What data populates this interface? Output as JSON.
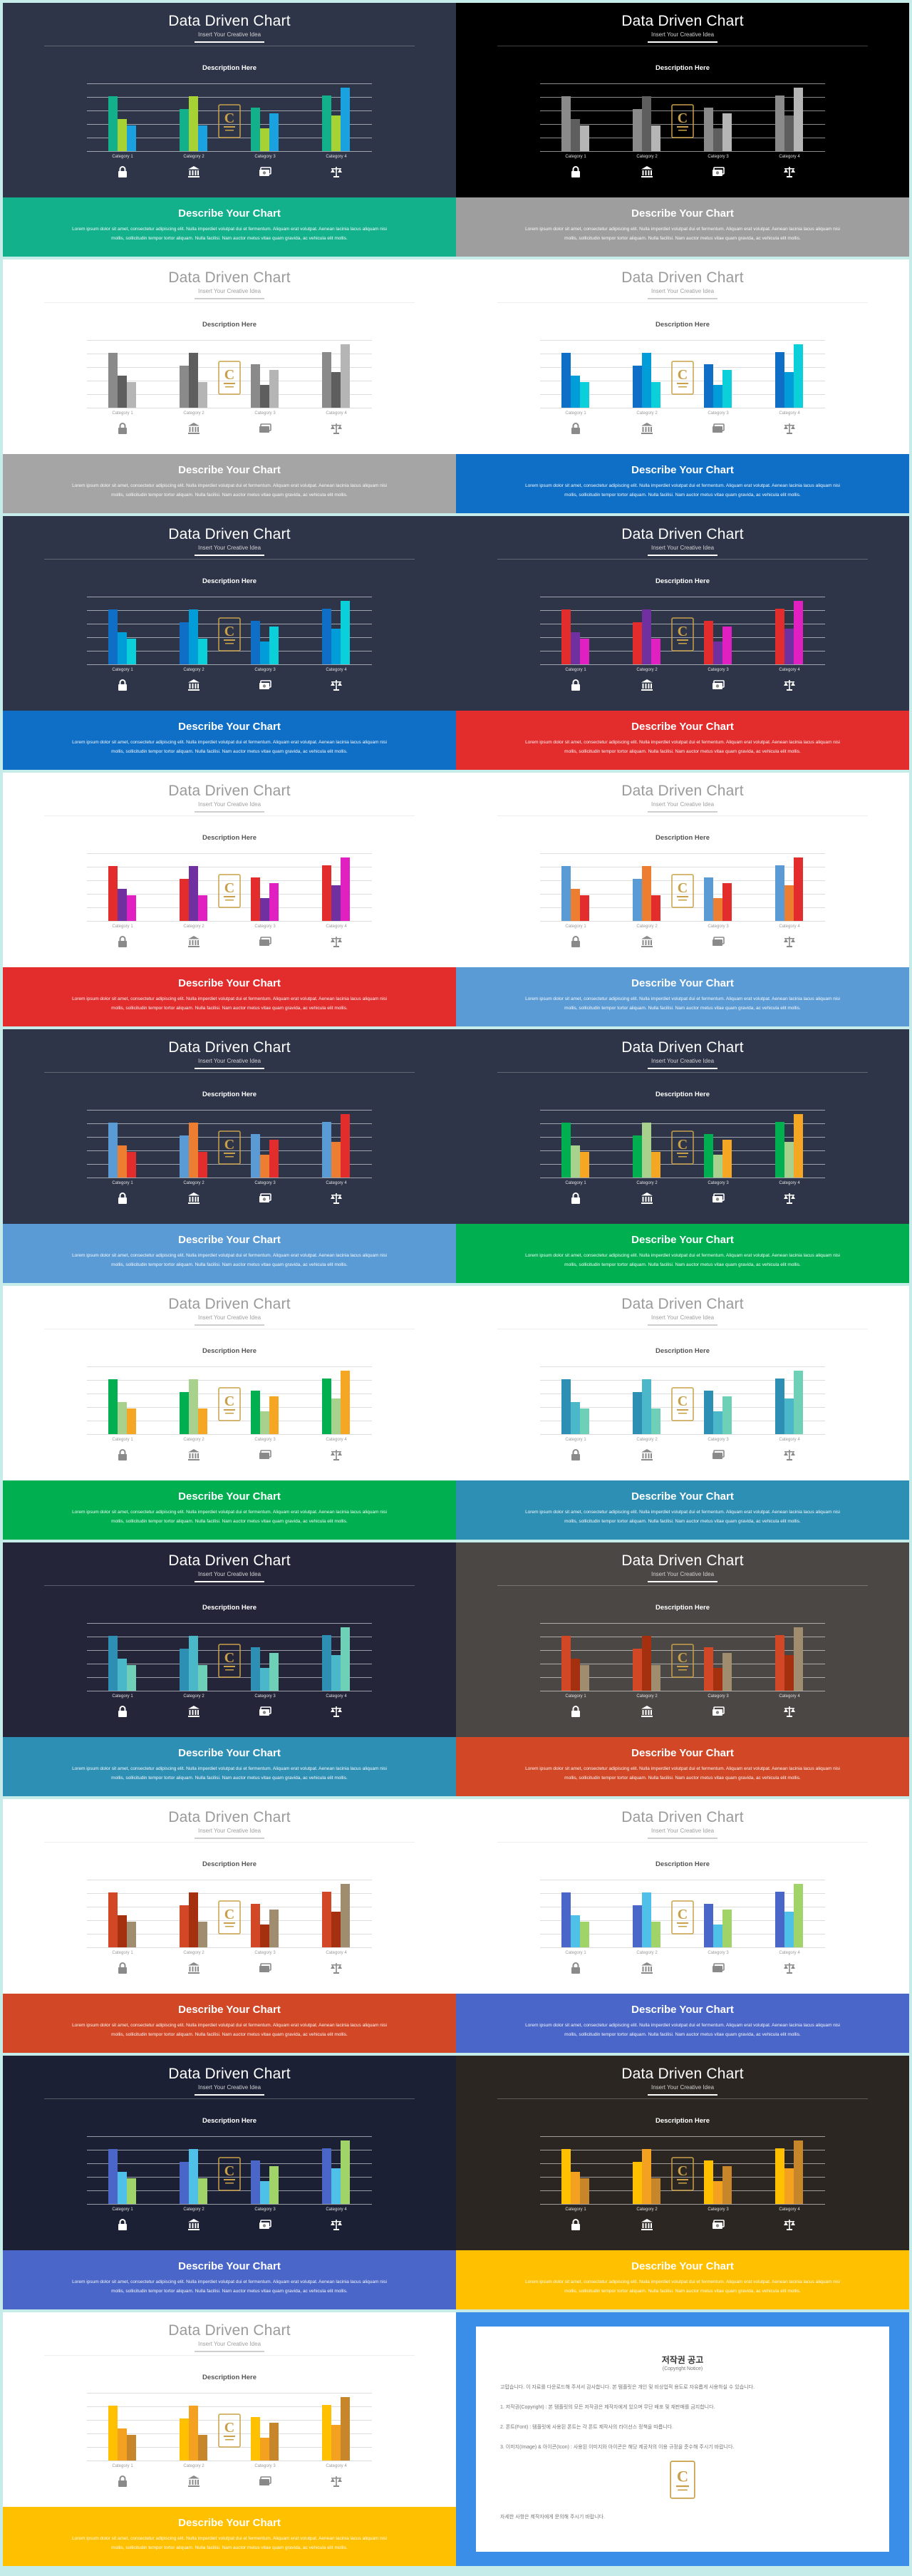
{
  "slide_text": {
    "title": "Data Driven Chart",
    "subtitle": "Insert Your Creative Idea",
    "chart_heading": "Description Here",
    "band_title": "Describe Your Chart",
    "band_body": "Lorem ipsum dolor sit amet, consectetur adipiscing elit. Nulla imperdiet volutpat dui et fermentum. Aliquam erat volutpat. Aenean lacinia lacus aliquam nisi mollis, sollicitudin tempor tortor aliquam. Nulla facilisi. Nam auctor metus vitae quam gravida, ac vehicula elit mollis."
  },
  "chart_data": {
    "type": "bar",
    "categories": [
      "Category 1",
      "Category 2",
      "Category 3",
      "Category 4"
    ],
    "series": [
      {
        "values": [
          4.3,
          3.3,
          3.4,
          4.4
        ]
      },
      {
        "values": [
          2.5,
          4.3,
          1.8,
          2.8
        ]
      },
      {
        "values": [
          2.0,
          2.0,
          3.0,
          5.0
        ]
      }
    ],
    "ylim": [
      0,
      5.5
    ],
    "icons": [
      "lock-icon",
      "bank-icon",
      "money-icon",
      "scale-icon"
    ]
  },
  "slides": [
    {
      "bg": "#2e3548",
      "dark": true,
      "band": "#13b08c",
      "colors": [
        "#13b08c",
        "#a6d233",
        "#1aa1df"
      ]
    },
    {
      "bg": "#000000",
      "dark": true,
      "band": "#9e9e9e",
      "colors": [
        "#8a8a8a",
        "#5e5e5e",
        "#b5b5b5"
      ]
    },
    {
      "bg": "#ffffff",
      "dark": false,
      "band": "#a5a5a5",
      "colors": [
        "#8a8a8a",
        "#5e5e5e",
        "#b5b5b5"
      ]
    },
    {
      "bg": "#ffffff",
      "dark": false,
      "band": "#0f6fc6",
      "colors": [
        "#0f6fc6",
        "#009dd9",
        "#0bd0d9"
      ]
    },
    {
      "bg": "#2e3548",
      "dark": true,
      "band": "#0f6fc6",
      "colors": [
        "#0f6fc6",
        "#009dd9",
        "#0bd0d9"
      ]
    },
    {
      "bg": "#2e3548",
      "dark": true,
      "band": "#e32d2d",
      "colors": [
        "#e32d2d",
        "#7030a0",
        "#e020c0"
      ]
    },
    {
      "bg": "#ffffff",
      "dark": false,
      "band": "#e32d2d",
      "colors": [
        "#e32d2d",
        "#7030a0",
        "#e020c0"
      ]
    },
    {
      "bg": "#ffffff",
      "dark": false,
      "band": "#5b9bd5",
      "colors": [
        "#5b9bd5",
        "#ed7d31",
        "#e32d2d"
      ]
    },
    {
      "bg": "#2e3548",
      "dark": true,
      "band": "#5b9bd5",
      "colors": [
        "#5b9bd5",
        "#ed7d31",
        "#e32d2d"
      ]
    },
    {
      "bg": "#2e3548",
      "dark": true,
      "band": "#00b050",
      "colors": [
        "#00b050",
        "#a9d18e",
        "#f5a623"
      ]
    },
    {
      "bg": "#ffffff",
      "dark": false,
      "band": "#00b050",
      "colors": [
        "#00b050",
        "#a9d18e",
        "#f5a623"
      ]
    },
    {
      "bg": "#ffffff",
      "dark": false,
      "band": "#2e8fb5",
      "colors": [
        "#2e8fb5",
        "#4ab8c8",
        "#6fd0b8"
      ]
    },
    {
      "bg": "#25253a",
      "dark": true,
      "band": "#2e8fb5",
      "colors": [
        "#2e8fb5",
        "#4ab8c8",
        "#6fd0b8"
      ]
    },
    {
      "bg": "#4a4744",
      "dark": true,
      "band": "#d24726",
      "colors": [
        "#d24726",
        "#a5300f",
        "#a08c6e"
      ]
    },
    {
      "bg": "#ffffff",
      "dark": false,
      "band": "#d24726",
      "colors": [
        "#d24726",
        "#a5300f",
        "#a08c6e"
      ]
    },
    {
      "bg": "#ffffff",
      "dark": false,
      "band": "#4a66c8",
      "colors": [
        "#4a66c8",
        "#4fc1e9",
        "#a0d468"
      ]
    },
    {
      "bg": "#1c2035",
      "dark": true,
      "band": "#4a66c8",
      "colors": [
        "#4a66c8",
        "#4fc1e9",
        "#a0d468"
      ]
    },
    {
      "bg": "#2b2622",
      "dark": true,
      "band": "#ffc000",
      "colors": [
        "#ffc000",
        "#f4a020",
        "#c8862a"
      ]
    },
    {
      "bg": "#ffffff",
      "dark": false,
      "band": "#ffc000",
      "colors": [
        "#ffc000",
        "#f4a020",
        "#c8862a"
      ]
    }
  ],
  "notice": {
    "title": "저작권 공고",
    "subtitle": "(Copyright Notice)",
    "paragraphs": [
      "고맙습니다. 이 자료를 다운로드해 주셔서 감사합니다. 본 템플릿은 개인 및 비상업적 용도로 자유롭게 사용하실 수 있습니다.",
      "1. 저작권(Copyright) : 본 템플릿의 모든 저작권은 제작자에게 있으며 무단 배포 및 재판매를 금지합니다.",
      "2. 폰트(Font) : 템플릿에 사용된 폰트는 각 폰트 제작사의 라이선스 정책을 따릅니다.",
      "3. 이미지(Image) & 아이콘(Icon) : 사용된 이미지와 아이콘은 해당 제공처의 이용 규정을 준수해 주시기 바랍니다."
    ],
    "footer": "자세한 사항은 제작자에게 문의해 주시기 바랍니다."
  },
  "colors": {
    "page_bg": "#c6ecea",
    "notice_bg": "#3a8ee8",
    "medal_gold": "#c9a04a"
  }
}
